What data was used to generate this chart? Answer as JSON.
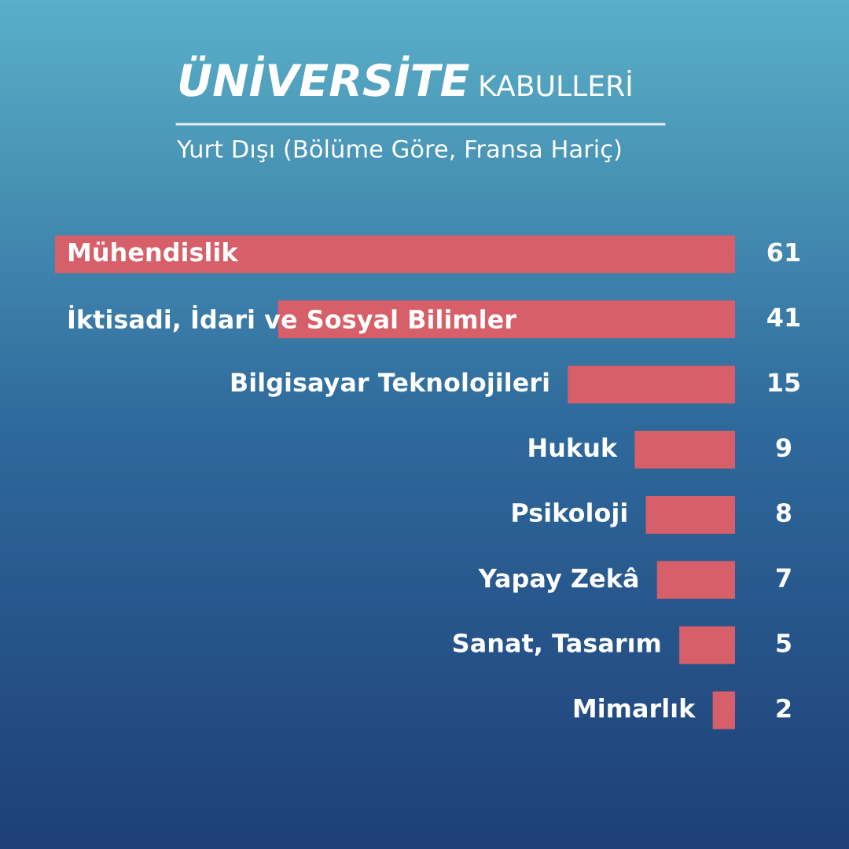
{
  "chart_data": {
    "type": "bar",
    "orientation": "horizontal",
    "title": "ÜNİVERSİTE KABULLERİ",
    "subtitle": "Yurt Dışı (Bölüme Göre, Fransa Hariç)",
    "categories": [
      "Mühendislik",
      "İktisadi, İdari ve Sosyal Bilimler",
      "Bilgisayar Teknolojileri",
      "Hukuk",
      "Psikoloji",
      "Yapay Zekâ",
      "Sanat, Tasarım",
      "Mimarlık"
    ],
    "values": [
      61,
      41,
      15,
      9,
      8,
      7,
      5,
      2
    ],
    "color": "#d65f69",
    "data_labels": true
  }
}
